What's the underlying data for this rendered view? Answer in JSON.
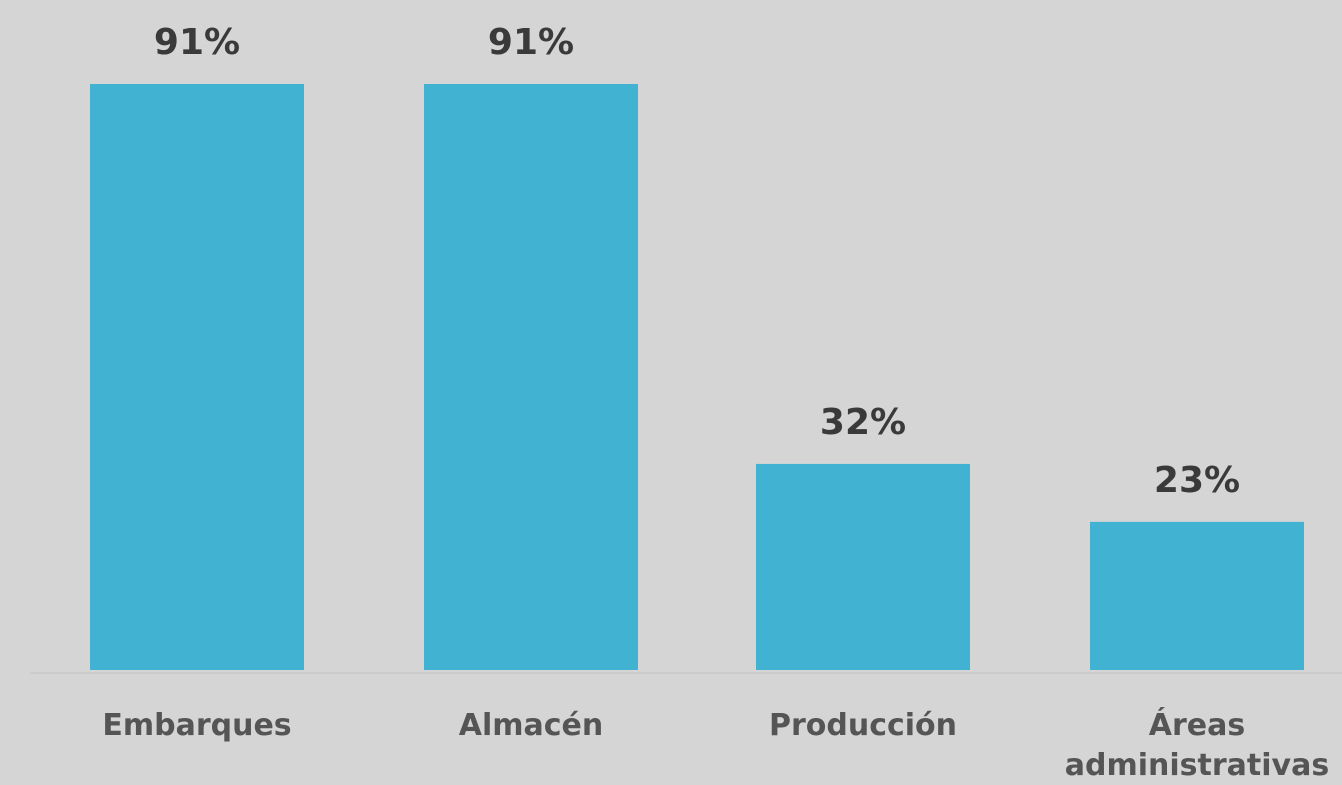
{
  "chart_data": {
    "type": "bar",
    "categories": [
      "Embarques",
      "Almacén",
      "Producción",
      "Áreas administrativas"
    ],
    "category_lines": [
      [
        "Embarques"
      ],
      [
        "Almacén"
      ],
      [
        "Producción"
      ],
      [
        "Áreas",
        "administrativas"
      ]
    ],
    "values": [
      91,
      91,
      32,
      23
    ],
    "value_labels": [
      "91%",
      "91%",
      "32%",
      "23%"
    ],
    "unit": "%",
    "title": "",
    "xlabel": "",
    "ylabel": "",
    "ylim": [
      0,
      100
    ],
    "grid": false,
    "legend": "none",
    "colors": {
      "bar": "#41b2d2",
      "background": "#d5d5d5",
      "baseline": "#cccccc",
      "value_text": "#3a3a3a",
      "category_text": "#555555"
    }
  }
}
